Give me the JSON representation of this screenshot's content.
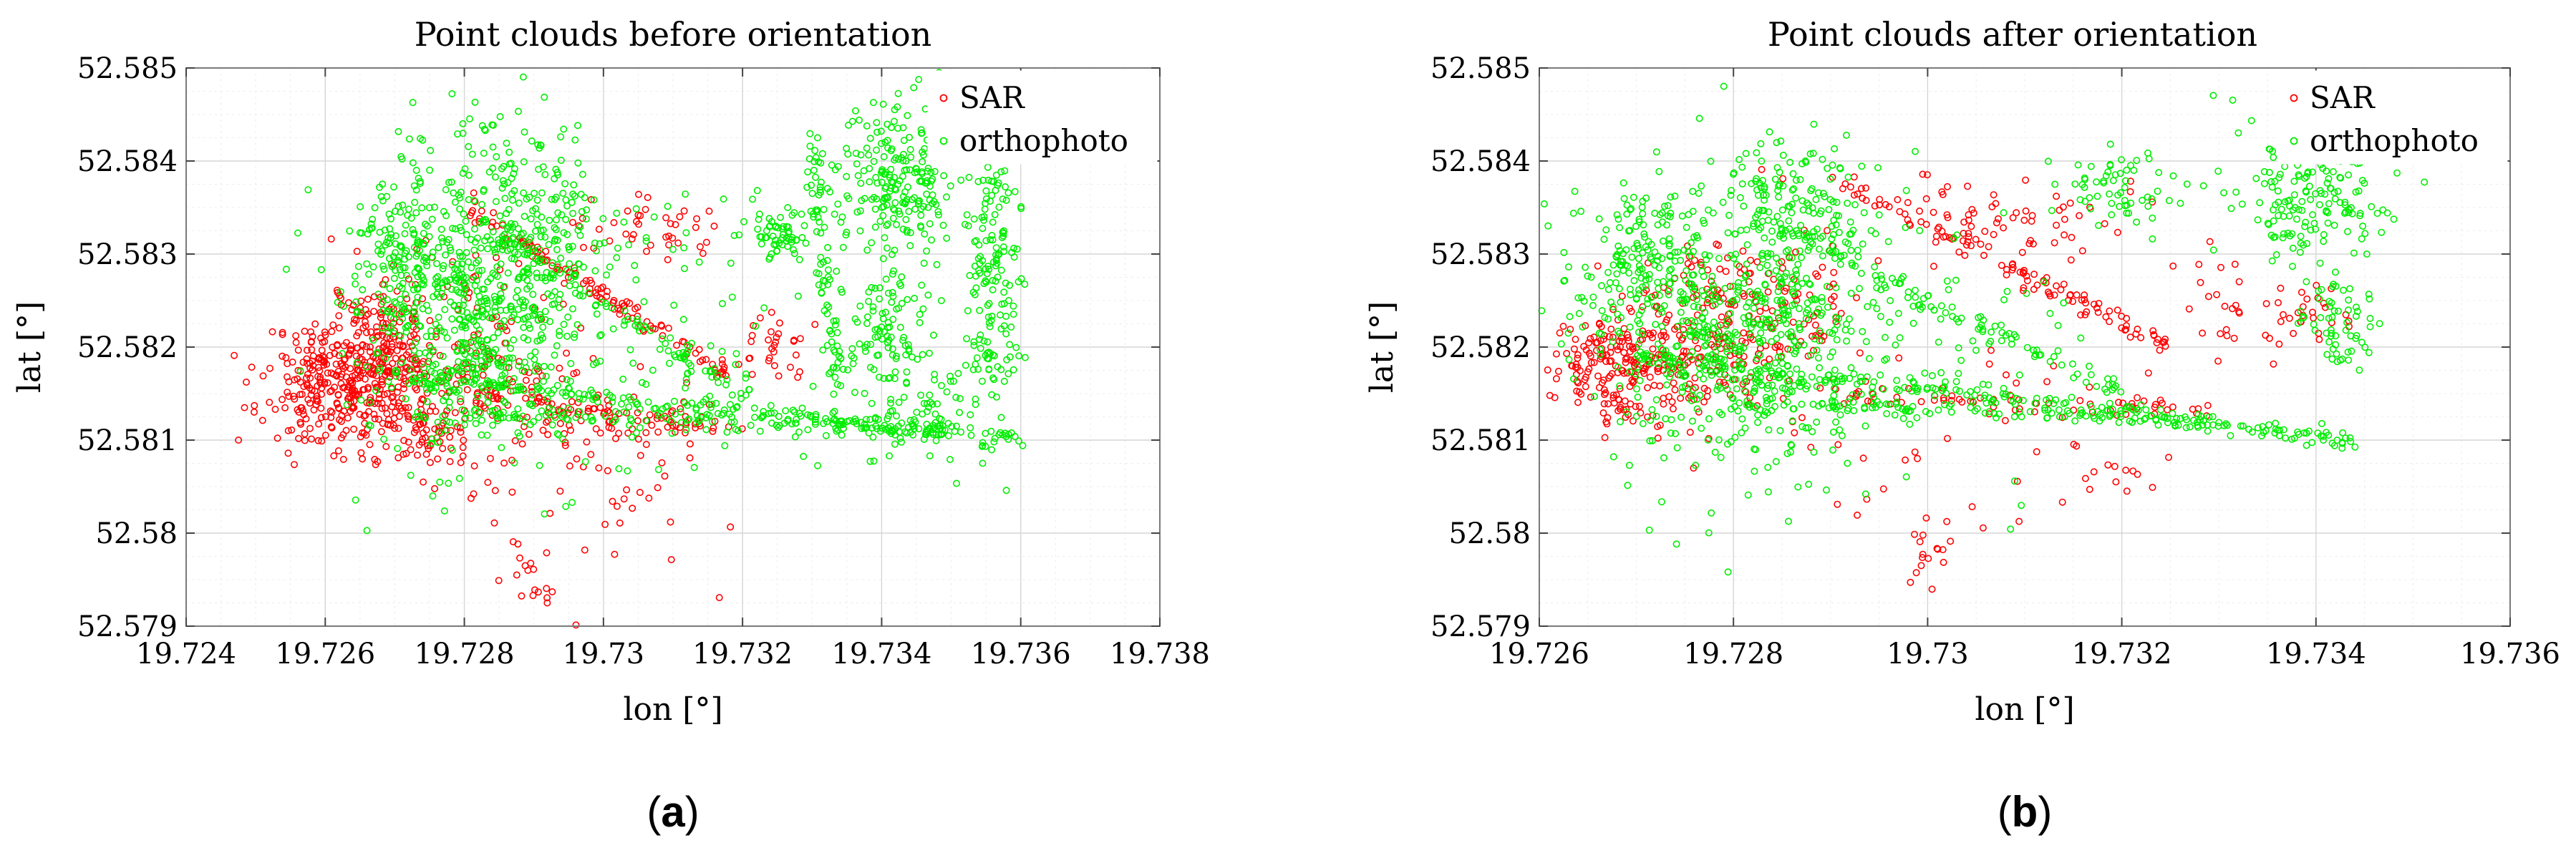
{
  "panels": [
    {
      "label_open": "(",
      "label_letter": "a",
      "label_close": ")"
    },
    {
      "label_open": "(",
      "label_letter": "b",
      "label_close": ")"
    }
  ],
  "colors": {
    "SAR": "#ff0000",
    "orthophoto": "#00ee00"
  },
  "chart_data": [
    {
      "type": "scatter",
      "title": "Point clouds before orientation",
      "xlabel": "lon [°]",
      "ylabel": "lat [°]",
      "xlim": [
        19.724,
        19.738
      ],
      "ylim": [
        52.579,
        52.585
      ],
      "xticks": [
        19.724,
        19.726,
        19.728,
        19.73,
        19.732,
        19.734,
        19.736,
        19.738
      ],
      "xtick_labels": [
        "19.724",
        "19.726",
        "19.728",
        "19.73",
        "19.732",
        "19.734",
        "19.736",
        "19.738"
      ],
      "yticks": [
        52.579,
        52.58,
        52.581,
        52.582,
        52.583,
        52.584,
        52.585
      ],
      "ytick_labels": [
        "52.579",
        "52.58",
        "52.581",
        "52.582",
        "52.583",
        "52.584",
        "52.585"
      ],
      "grid": true,
      "legend_position": "top-right",
      "series": [
        {
          "name": "SAR",
          "color": "#ff0000",
          "marker": "circle",
          "clusters": [
            {
              "x": 19.7261,
              "y": 52.5816,
              "sx": 0.0005,
              "sy": 0.00035,
              "n": 260
            },
            {
              "x": 19.7268,
              "y": 52.582,
              "sx": 0.0004,
              "sy": 0.0004,
              "n": 200
            },
            {
              "x": 19.728,
              "y": 52.5818,
              "sx": 0.0006,
              "sy": 0.0006,
              "n": 160
            },
            {
              "x": 19.7273,
              "y": 52.5811,
              "sx": 0.0003,
              "sy": 0.0002,
              "n": 60
            },
            {
              "x": 19.73,
              "y": 52.5812,
              "sx": 0.0008,
              "sy": 0.00012,
              "n": 50
            },
            {
              "x": 19.7306,
              "y": 52.5833,
              "sx": 0.0005,
              "sy": 0.0002,
              "n": 40
            },
            {
              "x": 19.7324,
              "y": 52.582,
              "sx": 0.00025,
              "sy": 0.00018,
              "n": 30
            },
            {
              "x": 19.729,
              "y": 52.5795,
              "sx": 0.0002,
              "sy": 0.0003,
              "n": 20
            },
            {
              "x": 19.7305,
              "y": 52.5804,
              "sx": 0.0004,
              "sy": 0.0002,
              "n": 14
            },
            {
              "x": 19.7298,
              "y": 52.581,
              "sx": 0.0012,
              "sy": 0.0007,
              "n": 40
            }
          ],
          "lines": [
            {
              "x0": 19.728,
              "y0": 52.5835,
              "x1": 19.7318,
              "y1": 52.5817,
              "n": 110,
              "j": 6e-05
            },
            {
              "x0": 19.7282,
              "y0": 52.5815,
              "x1": 19.732,
              "y1": 52.5811,
              "n": 60,
              "j": 5e-05
            }
          ]
        },
        {
          "name": "orthophoto",
          "color": "#00ee00",
          "marker": "circle",
          "clusters": [
            {
              "x": 19.728,
              "y": 52.5825,
              "sx": 0.0008,
              "sy": 0.0008,
              "n": 650
            },
            {
              "x": 19.7291,
              "y": 52.5833,
              "sx": 0.0004,
              "sy": 0.0006,
              "n": 120
            },
            {
              "x": 19.727,
              "y": 52.583,
              "sx": 0.0003,
              "sy": 0.0004,
              "n": 80
            },
            {
              "x": 19.7326,
              "y": 52.5832,
              "sx": 0.0003,
              "sy": 0.00015,
              "n": 60
            },
            {
              "x": 19.7342,
              "y": 52.5838,
              "sx": 0.0005,
              "sy": 0.0004,
              "n": 230
            },
            {
              "x": 19.7356,
              "y": 52.5828,
              "sx": 0.0002,
              "sy": 0.001,
              "n": 170
            },
            {
              "x": 19.734,
              "y": 52.5822,
              "sx": 0.0003,
              "sy": 0.0003,
              "n": 90
            },
            {
              "x": 19.7346,
              "y": 52.5814,
              "sx": 0.0004,
              "sy": 0.0003,
              "n": 70
            },
            {
              "x": 19.731,
              "y": 52.5822,
              "sx": 0.0012,
              "sy": 0.0008,
              "n": 90
            }
          ],
          "lines": [
            {
              "x0": 19.727,
              "y0": 52.5817,
              "x1": 19.736,
              "y1": 52.581,
              "n": 220,
              "j": 5e-05
            },
            {
              "x0": 19.728,
              "y0": 52.5813,
              "x1": 19.7345,
              "y1": 52.5811,
              "n": 110,
              "j": 4e-05
            },
            {
              "x0": 19.7285,
              "y0": 52.5832,
              "x1": 19.7322,
              "y1": 52.5814,
              "n": 90,
              "j": 6e-05
            },
            {
              "x0": 19.733,
              "y0": 52.5842,
              "x1": 19.7334,
              "y1": 52.5812,
              "n": 80,
              "j": 0.00015
            }
          ]
        }
      ]
    },
    {
      "type": "scatter",
      "title": "Point clouds after orientation",
      "xlabel": "lon [°]",
      "ylabel": "lat [°]",
      "xlim": [
        19.726,
        19.736
      ],
      "ylim": [
        52.579,
        52.585
      ],
      "xticks": [
        19.726,
        19.728,
        19.73,
        19.732,
        19.734,
        19.736
      ],
      "xtick_labels": [
        "19.726",
        "19.728",
        "19.73",
        "19.732",
        "19.734",
        "19.736"
      ],
      "yticks": [
        52.579,
        52.58,
        52.581,
        52.582,
        52.583,
        52.584,
        52.585
      ],
      "ytick_labels": [
        "52.579",
        "52.58",
        "52.581",
        "52.582",
        "52.583",
        "52.584",
        "52.585"
      ],
      "grid": true,
      "legend_position": "top-right",
      "series": [
        {
          "name": "SAR",
          "color": "#ff0000",
          "marker": "circle",
          "clusters": [
            {
              "x": 19.7268,
              "y": 52.5818,
              "sx": 0.0004,
              "sy": 0.0003,
              "n": 200
            },
            {
              "x": 19.728,
              "y": 52.5822,
              "sx": 0.0006,
              "sy": 0.0005,
              "n": 260
            },
            {
              "x": 19.731,
              "y": 52.5834,
              "sx": 0.0006,
              "sy": 0.0003,
              "n": 60
            },
            {
              "x": 19.7332,
              "y": 52.5824,
              "sx": 0.0004,
              "sy": 0.0003,
              "n": 30
            },
            {
              "x": 19.73,
              "y": 52.5797,
              "sx": 0.00015,
              "sy": 0.0002,
              "n": 16
            },
            {
              "x": 19.732,
              "y": 52.5806,
              "sx": 0.0002,
              "sy": 0.0001,
              "n": 10
            },
            {
              "x": 19.734,
              "y": 52.5824,
              "sx": 0.0002,
              "sy": 0.0002,
              "n": 22
            },
            {
              "x": 19.7305,
              "y": 52.5812,
              "sx": 0.001,
              "sy": 0.0006,
              "n": 40
            }
          ],
          "lines": [
            {
              "x0": 19.729,
              "y0": 52.5838,
              "x1": 19.7325,
              "y1": 52.582,
              "n": 110,
              "j": 6e-05
            },
            {
              "x0": 19.729,
              "y0": 52.5815,
              "x1": 19.733,
              "y1": 52.5813,
              "n": 60,
              "j": 5e-05
            }
          ]
        },
        {
          "name": "orthophoto",
          "color": "#00ee00",
          "marker": "circle",
          "clusters": [
            {
              "x": 19.728,
              "y": 52.5822,
              "sx": 0.0008,
              "sy": 0.0008,
              "n": 650
            },
            {
              "x": 19.727,
              "y": 52.583,
              "sx": 0.0003,
              "sy": 0.0004,
              "n": 90
            },
            {
              "x": 19.7287,
              "y": 52.5835,
              "sx": 0.0004,
              "sy": 0.0004,
              "n": 120
            },
            {
              "x": 19.732,
              "y": 52.5837,
              "sx": 0.0003,
              "sy": 0.0002,
              "n": 60
            },
            {
              "x": 19.734,
              "y": 52.5836,
              "sx": 0.0004,
              "sy": 0.0004,
              "n": 160
            },
            {
              "x": 19.7342,
              "y": 52.5823,
              "sx": 0.0002,
              "sy": 0.0003,
              "n": 60
            },
            {
              "x": 19.73,
              "y": 52.582,
              "sx": 0.001,
              "sy": 0.0008,
              "n": 80
            }
          ],
          "lines": [
            {
              "x0": 19.727,
              "y0": 52.5819,
              "x1": 19.7345,
              "y1": 52.581,
              "n": 220,
              "j": 5e-05
            },
            {
              "x0": 19.728,
              "y0": 52.5814,
              "x1": 19.733,
              "y1": 52.5812,
              "n": 110,
              "j": 4e-05
            },
            {
              "x0": 19.7282,
              "y0": 52.5834,
              "x1": 19.732,
              "y1": 52.5815,
              "n": 90,
              "j": 6e-05
            }
          ]
        }
      ]
    }
  ]
}
